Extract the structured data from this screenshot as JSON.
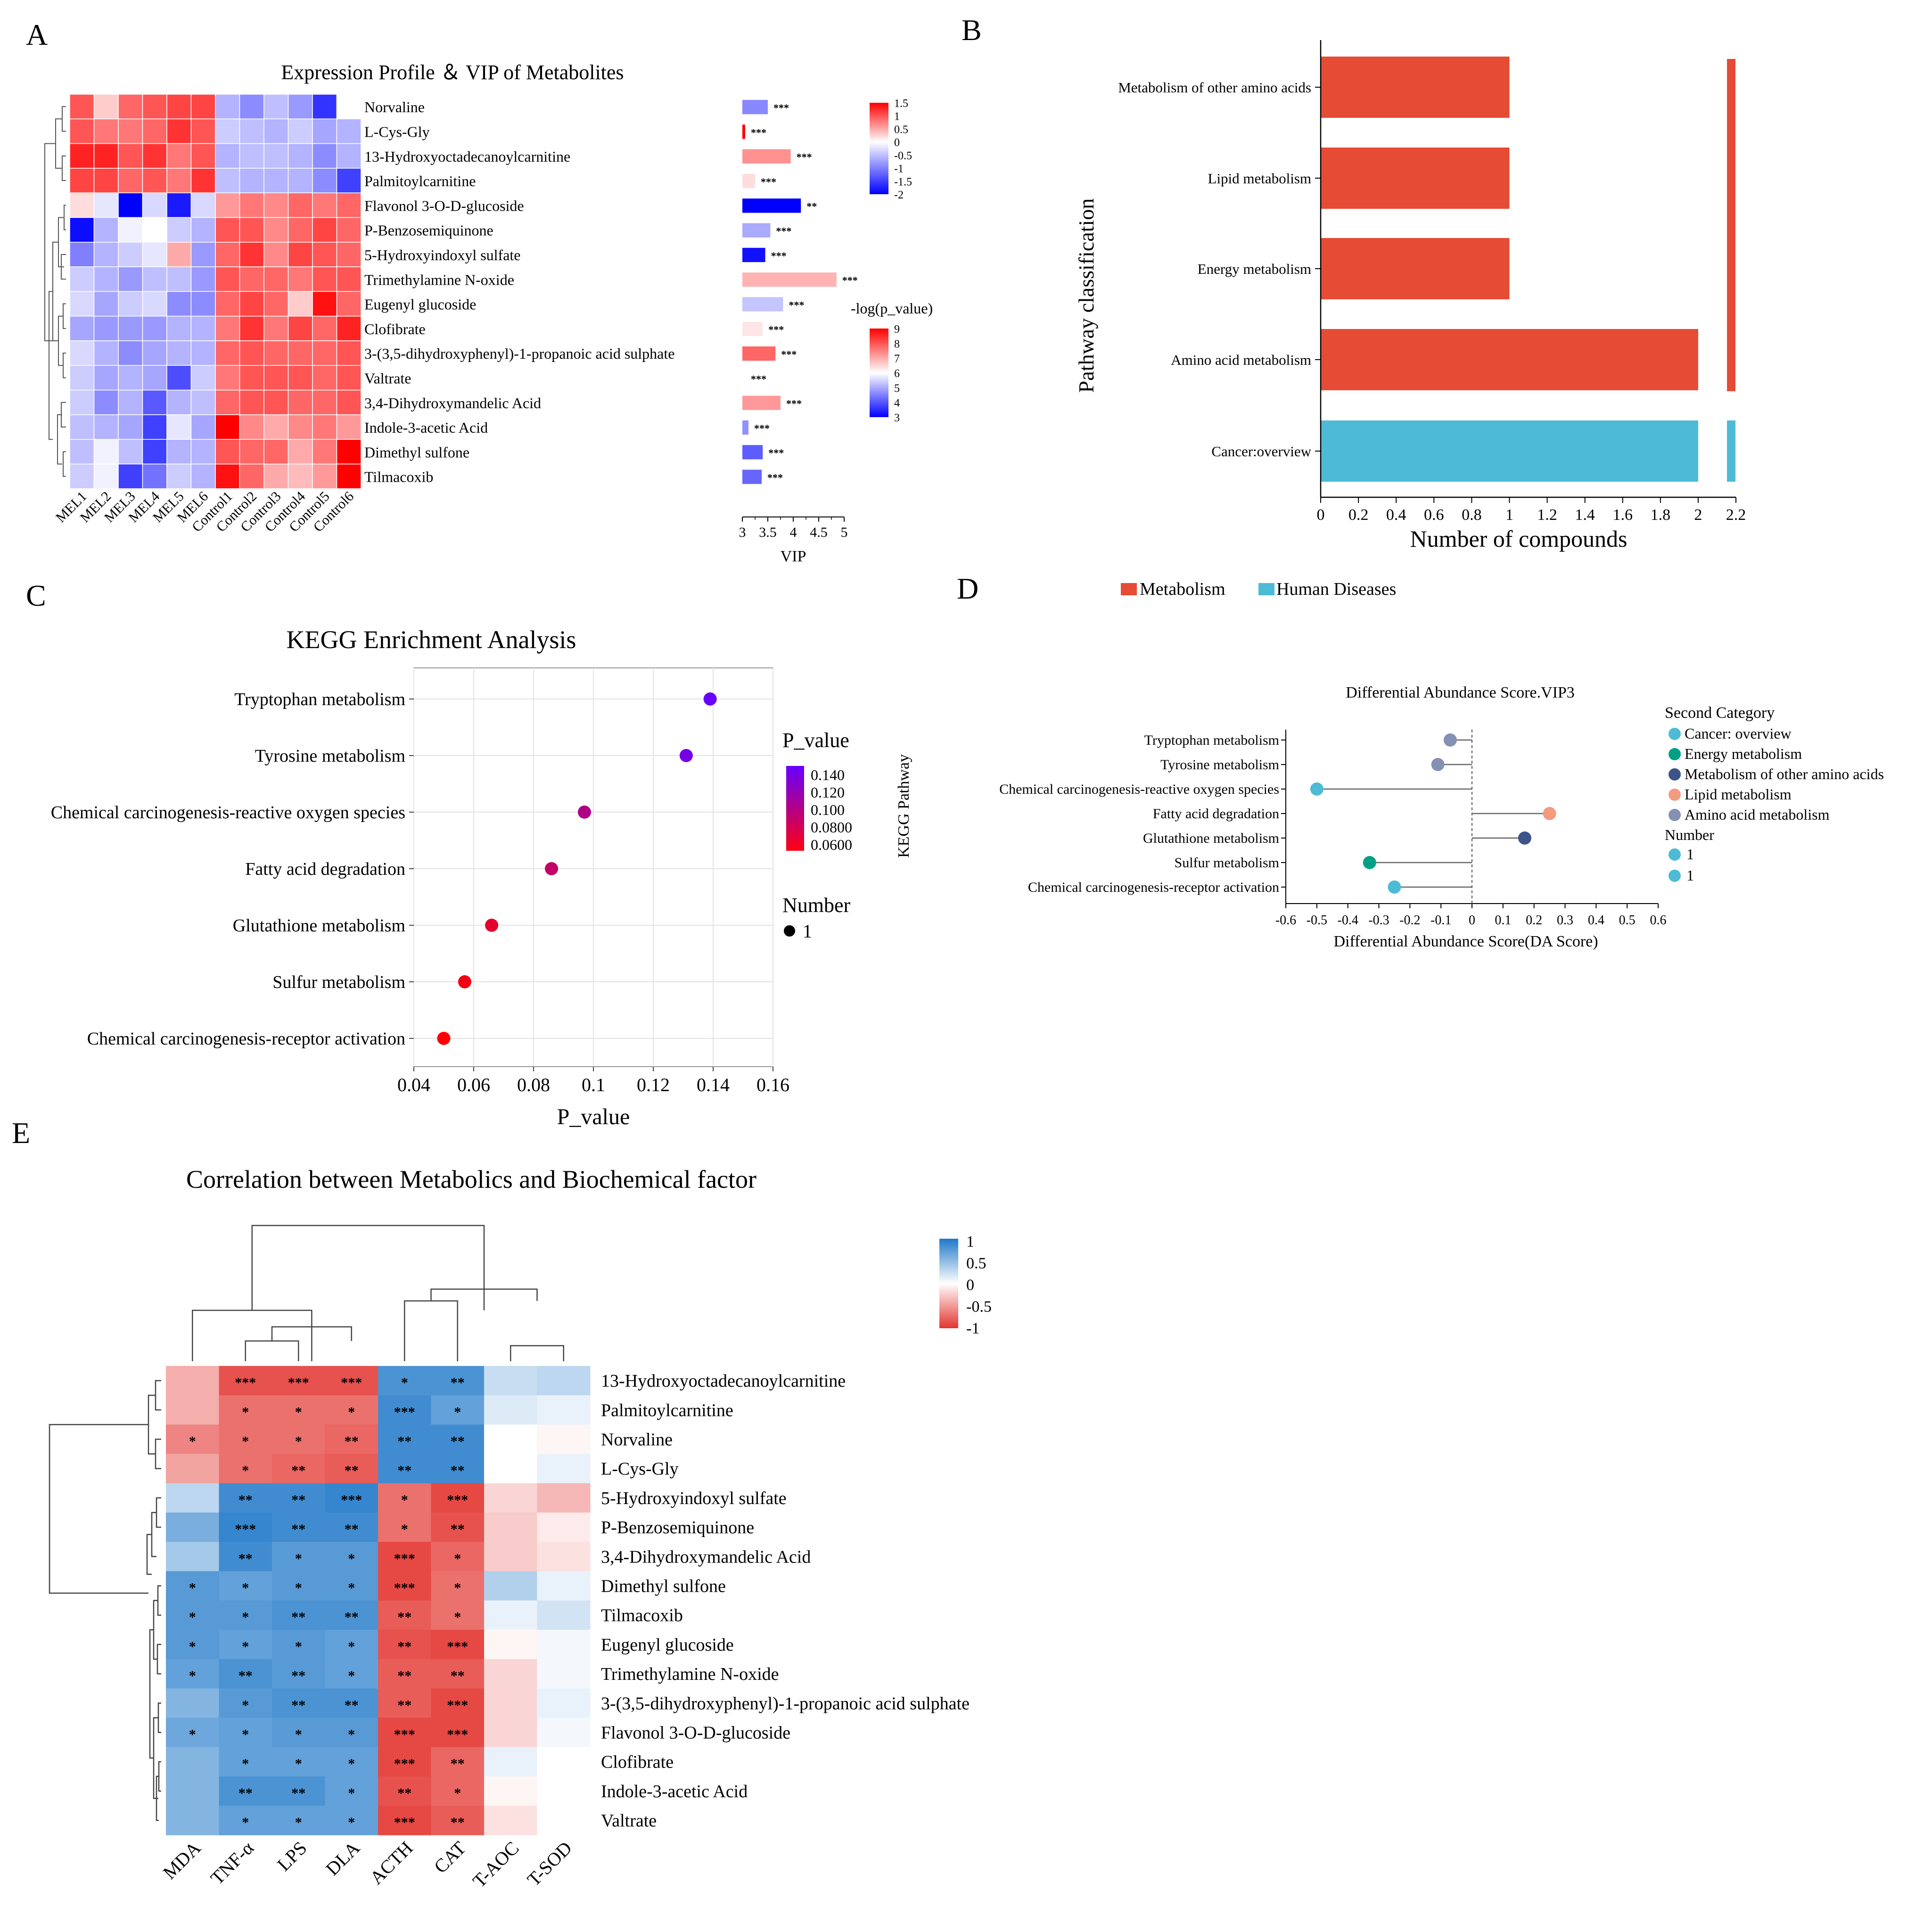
{
  "panels": {
    "A": {
      "letter": "A",
      "title": "Expression Profile ＆ VIP of Metabolites",
      "metabolites": [
        "Norvaline",
        "L-Cys-Gly",
        "13-Hydroxyoctadecanoylcarnitine",
        "Palmitoylcarnitine",
        "Flavonol 3-O-D-glucoside",
        "P-Benzosemiquinone",
        "5-Hydroxyindoxyl sulfate",
        "Trimethylamine N-oxide",
        "Eugenyl glucoside",
        "Clofibrate",
        "3-(3,5-dihydroxyphenyl)-1-propanoic acid sulphate",
        "Valtrate",
        "3,4-Dihydroxymandelic Acid",
        "Indole-3-acetic Acid",
        "Dimethyl sulfone",
        "Tilmacoxib"
      ],
      "samples": [
        "MEL1",
        "MEL2",
        "MEL3",
        "MEL4",
        "MEL5",
        "MEL6",
        "Control1",
        "Control2",
        "Control3",
        "Control4",
        "Control5",
        "Control6"
      ],
      "expression": [
        [
          1.0,
          0.3,
          0.9,
          1.0,
          1.1,
          1.1,
          -0.6,
          -0.9,
          -0.5,
          -0.8,
          -1.6,
          0.0
        ],
        [
          1.0,
          0.8,
          0.8,
          0.9,
          1.2,
          1.0,
          -0.4,
          -0.5,
          -0.6,
          -0.4,
          -0.7,
          -0.6
        ],
        [
          1.3,
          1.3,
          1.0,
          1.2,
          0.8,
          1.0,
          -0.6,
          -0.5,
          -0.5,
          -0.6,
          -0.9,
          -0.6
        ],
        [
          1.1,
          1.1,
          0.9,
          1.0,
          0.8,
          1.2,
          -0.5,
          -0.6,
          -0.6,
          -0.6,
          -0.9,
          -1.5
        ],
        [
          0.2,
          -0.2,
          -2.0,
          -0.3,
          -1.8,
          -0.3,
          0.6,
          0.8,
          0.7,
          0.9,
          0.8,
          0.9
        ],
        [
          -1.9,
          -0.6,
          -0.1,
          0.0,
          -0.4,
          -0.6,
          1.0,
          1.0,
          0.7,
          0.9,
          1.1,
          0.9
        ],
        [
          -1.0,
          -0.6,
          -0.4,
          -0.2,
          0.5,
          -0.8,
          0.9,
          1.2,
          0.7,
          1.1,
          1.0,
          0.9
        ],
        [
          -0.4,
          -0.6,
          -0.8,
          -0.5,
          -0.5,
          -0.8,
          1.0,
          0.9,
          0.9,
          0.8,
          1.0,
          1.0
        ],
        [
          -0.3,
          -0.7,
          -0.4,
          -0.3,
          -0.9,
          -0.9,
          0.9,
          1.1,
          0.9,
          0.3,
          1.4,
          0.9
        ],
        [
          -0.7,
          -0.8,
          -0.8,
          -0.8,
          -0.6,
          -0.6,
          0.8,
          1.2,
          0.8,
          1.1,
          0.9,
          1.3
        ],
        [
          -0.3,
          -0.6,
          -0.9,
          -0.7,
          -0.6,
          -0.6,
          0.9,
          1.0,
          0.9,
          0.9,
          0.9,
          1.0
        ],
        [
          -0.4,
          -0.7,
          -0.6,
          -0.7,
          -1.4,
          -0.4,
          0.8,
          1.0,
          1.0,
          1.0,
          0.9,
          1.0
        ],
        [
          -0.4,
          -0.9,
          -0.6,
          -1.3,
          -0.6,
          -0.5,
          0.9,
          1.0,
          1.0,
          0.9,
          0.9,
          1.0
        ],
        [
          -0.5,
          -0.6,
          -0.7,
          -1.5,
          -0.2,
          -0.7,
          1.6,
          0.7,
          0.5,
          0.7,
          0.8,
          0.6
        ],
        [
          -0.5,
          -0.1,
          -0.5,
          -1.5,
          -0.6,
          -0.6,
          1.0,
          0.9,
          0.9,
          0.5,
          0.8,
          1.5
        ],
        [
          -0.4,
          -0.1,
          -1.5,
          -1.1,
          -0.4,
          -0.6,
          1.4,
          0.9,
          0.5,
          0.4,
          0.6,
          1.6
        ]
      ],
      "vip": [
        3.5,
        3.05,
        3.95,
        3.25,
        4.15,
        3.55,
        3.45,
        4.85,
        3.8,
        3.4,
        3.65,
        3.0,
        3.75,
        3.12,
        3.4,
        3.38
      ],
      "neglogp": [
        4.6,
        9.0,
        7.3,
        6.4,
        3.0,
        5.0,
        3.2,
        6.9,
        5.3,
        6.3,
        7.8,
        6.0,
        7.2,
        4.7,
        4.1,
        4.2
      ],
      "significance": [
        "***",
        "***",
        "***",
        "***",
        "**",
        "***",
        "***",
        "***",
        "***",
        "***",
        "***",
        "***",
        "***",
        "***",
        "***",
        "***"
      ],
      "vip_axis": {
        "label": "VIP",
        "ticks": [
          "3",
          "3.5",
          "4",
          "4.5",
          "5"
        ],
        "range": [
          3,
          5
        ]
      },
      "legend_expression": {
        "ticks": [
          "1.5",
          "1",
          "0.5",
          "0",
          "-0.5",
          "-1",
          "-1.5",
          "-2"
        ],
        "range": [
          -2,
          1.5
        ]
      },
      "legend_p": {
        "title": "-log(p_value)",
        "ticks": [
          "9",
          "8",
          "7",
          "6",
          "5",
          "4",
          "3"
        ],
        "range": [
          3,
          9
        ]
      }
    },
    "B": {
      "letter": "B",
      "chart_type": "bar",
      "categories": [
        "Metabolism of other amino acids",
        "Lipid metabolism",
        "Energy metabolism",
        "Amino acid metabolism",
        "Cancer:overview"
      ],
      "values": [
        1,
        1,
        1,
        2,
        2
      ],
      "groups": [
        "Metabolism",
        "Metabolism",
        "Metabolism",
        "Metabolism",
        "Human Diseases"
      ],
      "xlabel": "Number of compounds",
      "ylabel": "Pathway classification",
      "xticks": [
        "0",
        "0.2",
        "0.4",
        "0.6",
        "0.8",
        "1",
        "1.2",
        "1.4",
        "1.6",
        "1.8",
        "2",
        "2.2"
      ],
      "xlim": [
        0,
        2.2
      ],
      "legend": [
        {
          "label": "Metabolism",
          "color": "#e64b35"
        },
        {
          "label": "Human Diseases",
          "color": "#4dbbd5"
        }
      ]
    },
    "C": {
      "letter": "C",
      "title": "KEGG Enrichment Analysis",
      "chart_type": "scatter",
      "pathways": [
        "Tryptophan metabolism",
        "Tyrosine metabolism",
        "Chemical carcinogenesis-reactive oxygen species",
        "Fatty acid degradation",
        "Glutathione metabolism",
        "Sulfur metabolism",
        "Chemical carcinogenesis-receptor activation"
      ],
      "p_values": [
        0.139,
        0.131,
        0.097,
        0.086,
        0.066,
        0.057,
        0.05
      ],
      "xlabel": "P_value",
      "xticks": [
        "0.04",
        "0.06",
        "0.08",
        "0.1",
        "0.12",
        "0.14",
        "0.16"
      ],
      "xlim": [
        0.04,
        0.16
      ],
      "legend_title": "P_value",
      "legend_ticks": [
        "0.140",
        "0.120",
        "0.100",
        "0.0800",
        "0.0600"
      ],
      "number_title": "Number",
      "number_value": "1"
    },
    "D": {
      "letter": "D",
      "title": "Differential Abundance Score.VIP3",
      "chart_type": "lollipop",
      "pathways": [
        "Tryptophan metabolism",
        "Tyrosine metabolism",
        "Chemical carcinogenesis-reactive oxygen species",
        "Fatty acid degradation",
        "Glutathione metabolism",
        "Sulfur metabolism",
        "Chemical carcinogenesis-receptor activation"
      ],
      "scores": [
        -0.07,
        -0.11,
        -0.5,
        0.25,
        0.17,
        -0.33,
        -0.25
      ],
      "categories_of_points": [
        "Amino acid metabolism",
        "Amino acid metabolism",
        "Cancer: overview",
        "Lipid metabolism",
        "Metabolism of other amino acids",
        "Energy metabolism",
        "Cancer: overview"
      ],
      "xlabel": "Differential Abundance Score(DA Score)",
      "ylabel": "KEGG Pathway",
      "xticks": [
        "-0.6",
        "-0.5",
        "-0.4",
        "-0.3",
        "-0.2",
        "-0.1",
        "0",
        "0.1",
        "0.2",
        "0.3",
        "0.4",
        "0.5",
        "0.6"
      ],
      "xlim": [
        -0.6,
        0.6
      ],
      "legend_title": "Second Category",
      "legend": [
        {
          "label": "Cancer: overview",
          "color": "#4dbbd5"
        },
        {
          "label": "Energy metabolism",
          "color": "#00a087"
        },
        {
          "label": "Metabolism of other amino acids",
          "color": "#3c5488"
        },
        {
          "label": "Lipid metabolism",
          "color": "#f39b7f"
        },
        {
          "label": "Amino acid metabolism",
          "color": "#8491b4"
        }
      ],
      "number_title": "Number",
      "number_labels": [
        "1",
        "1"
      ]
    },
    "E": {
      "letter": "E",
      "title": "Correlation between Metabolics and Biochemical factor",
      "chart_type": "heatmap",
      "factors": [
        "MDA",
        "TNF-α",
        "LPS",
        "DLA",
        "ACTH",
        "CAT",
        "T-AOC",
        "T-SOD"
      ],
      "metabolites": [
        "13-Hydroxyoctadecanoylcarnitine",
        "Palmitoylcarnitine",
        "Norvaline",
        "L-Cys-Gly",
        "5-Hydroxyindoxyl sulfate",
        "P-Benzosemiquinone",
        "3,4-Dihydroxymandelic Acid",
        "Dimethyl sulfone",
        "Tilmacoxib",
        "Eugenyl  glucoside",
        "Trimethylamine N-oxide",
        "3-(3,5-dihydroxyphenyl)-1-propanoic acid sulphate",
        "Flavonol 3-O-D-glucoside",
        "Clofibrate",
        "Indole-3-acetic Acid",
        "Valtrate"
      ],
      "values": [
        [
          -0.4,
          -0.85,
          -0.85,
          -0.85,
          0.8,
          0.8,
          0.25,
          0.3
        ],
        [
          -0.4,
          -0.7,
          -0.7,
          -0.7,
          0.85,
          0.7,
          0.15,
          0.1
        ],
        [
          -0.6,
          -0.7,
          -0.7,
          -0.75,
          0.85,
          0.85,
          0.0,
          -0.05
        ],
        [
          -0.45,
          -0.7,
          -0.75,
          -0.8,
          0.85,
          0.85,
          0.0,
          0.1
        ],
        [
          0.3,
          0.85,
          0.85,
          0.9,
          -0.7,
          -0.9,
          -0.2,
          -0.35
        ],
        [
          0.6,
          0.9,
          0.85,
          0.85,
          -0.7,
          -0.85,
          -0.25,
          -0.1
        ],
        [
          0.4,
          0.85,
          0.75,
          0.75,
          -0.9,
          -0.75,
          -0.25,
          -0.15
        ],
        [
          0.75,
          0.7,
          0.75,
          0.75,
          -0.9,
          -0.7,
          0.35,
          0.1
        ],
        [
          0.75,
          0.75,
          0.8,
          0.8,
          -0.8,
          -0.7,
          0.1,
          0.2
        ],
        [
          0.75,
          0.7,
          0.75,
          0.7,
          -0.85,
          -0.9,
          -0.05,
          0.05
        ],
        [
          0.7,
          0.8,
          0.75,
          0.7,
          -0.8,
          -0.8,
          -0.2,
          0.05
        ],
        [
          0.55,
          0.75,
          0.8,
          0.8,
          -0.8,
          -0.9,
          -0.2,
          0.1
        ],
        [
          0.65,
          0.7,
          0.75,
          0.75,
          -0.9,
          -0.9,
          -0.2,
          0.05
        ],
        [
          0.55,
          0.7,
          0.7,
          0.7,
          -0.9,
          -0.75,
          0.1,
          0.0
        ],
        [
          0.55,
          0.8,
          0.8,
          0.7,
          -0.85,
          -0.75,
          -0.05,
          0.0
        ],
        [
          0.55,
          0.7,
          0.7,
          0.7,
          -0.9,
          -0.8,
          -0.15,
          0.0
        ]
      ],
      "stars": [
        [
          "",
          "***",
          "***",
          "***",
          "*",
          "**",
          "",
          ""
        ],
        [
          "",
          "*",
          "*",
          "*",
          "***",
          "*",
          "",
          ""
        ],
        [
          "*",
          "*",
          "*",
          "**",
          "**",
          "**",
          "",
          ""
        ],
        [
          "",
          "*",
          "**",
          "**",
          "**",
          "**",
          "",
          ""
        ],
        [
          "",
          "**",
          "**",
          "***",
          "*",
          "***",
          "",
          ""
        ],
        [
          "",
          "***",
          "**",
          "**",
          "*",
          "**",
          "",
          ""
        ],
        [
          "",
          "**",
          "*",
          "*",
          "***",
          "*",
          "",
          ""
        ],
        [
          "*",
          "*",
          "*",
          "*",
          "***",
          "*",
          "",
          ""
        ],
        [
          "*",
          "*",
          "**",
          "**",
          "**",
          "*",
          "",
          ""
        ],
        [
          "*",
          "*",
          "*",
          "*",
          "**",
          "***",
          "",
          ""
        ],
        [
          "*",
          "**",
          "**",
          "*",
          "**",
          "**",
          "",
          ""
        ],
        [
          "",
          "*",
          "**",
          "**",
          "**",
          "***",
          "",
          ""
        ],
        [
          "*",
          "*",
          "*",
          "*",
          "***",
          "***",
          "",
          ""
        ],
        [
          "",
          "*",
          "*",
          "*",
          "***",
          "**",
          "",
          ""
        ],
        [
          "",
          "**",
          "**",
          "*",
          "**",
          "*",
          "",
          ""
        ],
        [
          "",
          "*",
          "*",
          "*",
          "***",
          "**",
          "",
          ""
        ]
      ],
      "legend_ticks": [
        "1",
        "0.5",
        "0",
        "-0.5",
        "-1"
      ],
      "range": [
        -1,
        1
      ]
    }
  },
  "colors": {
    "metabolism": "#e64b35",
    "human_diseases": "#4dbbd5",
    "red": "#ff0000",
    "blue": "#0000ff",
    "heat_red": "#e3342f",
    "heat_blue": "#1f78c8"
  }
}
